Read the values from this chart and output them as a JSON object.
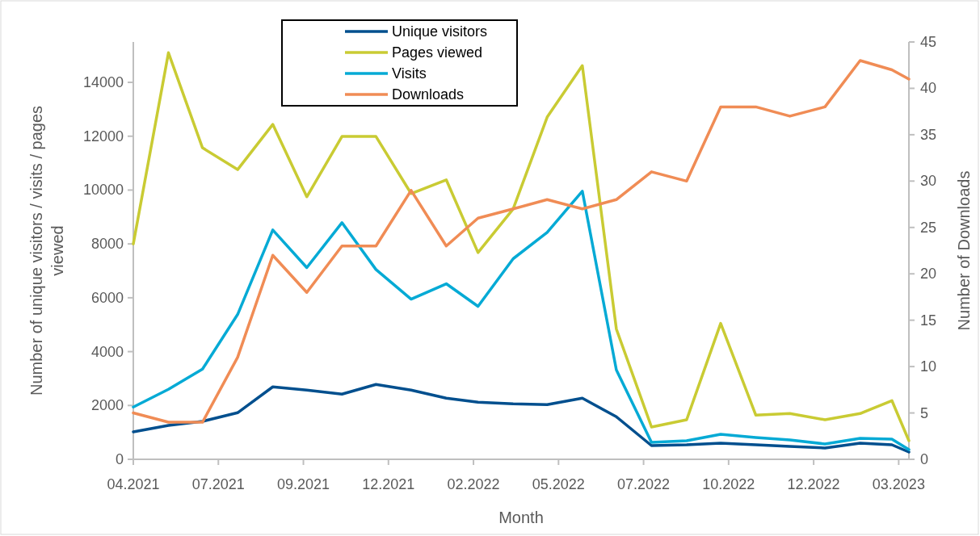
{
  "chart_data": {
    "type": "line",
    "xlabel": "Month",
    "ylabel": "Number of unique visitors / visits / pages viewed",
    "y2label": "Number of Downloads",
    "x": [
      "2021-04-30",
      "2021-05-31",
      "2021-06-30",
      "2021-07-31",
      "2021-08-31",
      "2021-09-30",
      "2021-10-31",
      "2021-11-30",
      "2021-12-31",
      "2022-01-31",
      "2022-02-28",
      "2022-03-31",
      "2022-04-30",
      "2022-05-31",
      "2022-06-30",
      "2022-07-31",
      "2022-08-31",
      "2022-09-30",
      "2022-10-31",
      "2022-11-30",
      "2022-12-31",
      "2023-01-31",
      "2023-02-28",
      "2023-03-15"
    ],
    "xlim": [
      "2021-04-30",
      "2023-03-15"
    ],
    "xticks": [
      {
        "value": "2021-04-30",
        "label": "04.2021"
      },
      {
        "value": "2021-07-14",
        "label": "07.2021"
      },
      {
        "value": "2021-09-27",
        "label": "09.2021"
      },
      {
        "value": "2021-12-11",
        "label": "12.2021"
      },
      {
        "value": "2022-02-24",
        "label": "02.2022"
      },
      {
        "value": "2022-05-10",
        "label": "05.2022"
      },
      {
        "value": "2022-07-24",
        "label": "07.2022"
      },
      {
        "value": "2022-10-07",
        "label": "10.2022"
      },
      {
        "value": "2022-12-21",
        "label": "12.2022"
      },
      {
        "value": "2023-03-06",
        "label": "03.2023"
      }
    ],
    "ylim": [
      0,
      15500
    ],
    "yticks": [
      0,
      2000,
      4000,
      6000,
      8000,
      10000,
      12000,
      14000
    ],
    "y2lim": [
      0,
      45
    ],
    "y2ticks": [
      0,
      5,
      10,
      15,
      20,
      25,
      30,
      35,
      40,
      45
    ],
    "legend": "top",
    "grid": false,
    "marker": "none",
    "line_style": "solid",
    "series": [
      {
        "name": "Unique visitors",
        "color": "#004f8e",
        "values": [
          1020,
          1260,
          1410,
          1730,
          2690,
          2570,
          2420,
          2780,
          2570,
          2270,
          2120,
          2060,
          2030,
          2270,
          1580,
          510,
          540,
          600,
          540,
          480,
          420,
          600,
          540,
          270
        ]
      },
      {
        "name": "Pages viewed",
        "color": "#c9cb33",
        "values": [
          8000,
          15100,
          11570,
          10760,
          12440,
          9750,
          11990,
          11990,
          9870,
          10380,
          7680,
          9300,
          12710,
          14620,
          4840,
          1200,
          1470,
          5050,
          1640,
          1700,
          1470,
          1700,
          2180,
          690
        ]
      },
      {
        "name": "Visits",
        "color": "#05aad5",
        "values": [
          1940,
          2600,
          3350,
          5380,
          8520,
          7120,
          8790,
          7050,
          5950,
          6520,
          5680,
          7450,
          8430,
          9960,
          3320,
          630,
          690,
          930,
          810,
          720,
          570,
          780,
          750,
          360
        ]
      },
      {
        "name": "Downloads",
        "color": "#f08c55",
        "axis": "y2",
        "values": [
          5,
          4,
          4,
          11,
          22,
          18,
          23,
          23,
          29,
          23,
          26,
          27,
          28,
          27,
          28,
          31,
          30,
          38,
          38,
          37,
          38,
          43,
          42,
          41
        ]
      }
    ]
  }
}
